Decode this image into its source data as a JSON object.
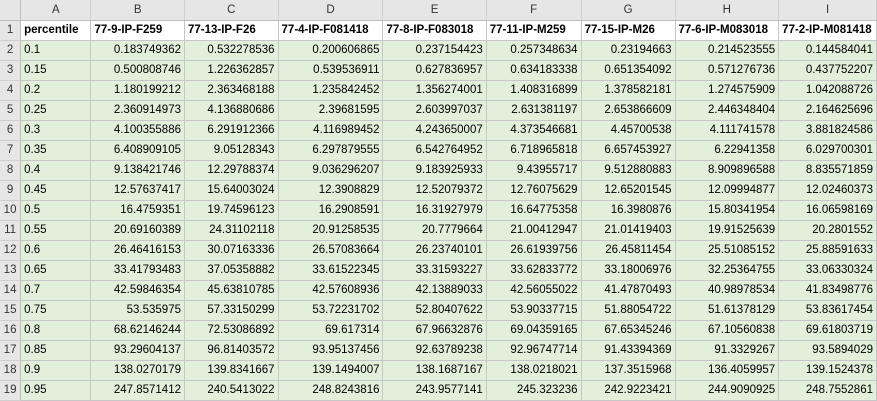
{
  "sheet": {
    "column_letters": [
      "A",
      "B",
      "C",
      "D",
      "E",
      "F",
      "G",
      "H",
      "I"
    ],
    "header_row": [
      "percentile",
      "77-9-IP-F259",
      "77-13-IP-F26",
      "77-4-IP-F081418",
      "77-8-IP-F083018",
      "77-11-IP-M259",
      "77-15-IP-M26",
      "77-6-IP-M083018",
      "77-2-IP-M081418"
    ],
    "rows": [
      [
        "0.1",
        "0.183749362",
        "0.532278536",
        "0.200606865",
        "0.237154423",
        "0.257348634",
        "0.23194663",
        "0.214523555",
        "0.144584041"
      ],
      [
        "0.15",
        "0.500808746",
        "1.226362857",
        "0.539536911",
        "0.627836957",
        "0.634183338",
        "0.651354092",
        "0.571276736",
        "0.437752207"
      ],
      [
        "0.2",
        "1.180199212",
        "2.363468188",
        "1.235842452",
        "1.356274001",
        "1.408316899",
        "1.378582181",
        "1.274575909",
        "1.042088726"
      ],
      [
        "0.25",
        "2.360914973",
        "4.136880686",
        "2.39681595",
        "2.603997037",
        "2.631381197",
        "2.653866609",
        "2.446348404",
        "2.164625696"
      ],
      [
        "0.3",
        "4.100355886",
        "6.291912366",
        "4.116989452",
        "4.243650007",
        "4.373546681",
        "4.45700538",
        "4.111741578",
        "3.881824586"
      ],
      [
        "0.35",
        "6.408909105",
        "9.05128343",
        "6.297879555",
        "6.542764952",
        "6.718965818",
        "6.657453927",
        "6.22941358",
        "6.029700301"
      ],
      [
        "0.4",
        "9.138421746",
        "12.29788374",
        "9.036296207",
        "9.183925933",
        "9.43955717",
        "9.512880883",
        "8.909896588",
        "8.835571859"
      ],
      [
        "0.45",
        "12.57637417",
        "15.64003024",
        "12.3908829",
        "12.52079372",
        "12.76075629",
        "12.65201545",
        "12.09994877",
        "12.02460373"
      ],
      [
        "0.5",
        "16.4759351",
        "19.74596123",
        "16.2908591",
        "16.31927979",
        "16.64775358",
        "16.3980876",
        "15.80341954",
        "16.06598169"
      ],
      [
        "0.55",
        "20.69160389",
        "24.31102118",
        "20.91258535",
        "20.7779664",
        "21.00412947",
        "21.01419403",
        "19.91525639",
        "20.2801552"
      ],
      [
        "0.6",
        "26.46416153",
        "30.07163336",
        "26.57083664",
        "26.23740101",
        "26.61939756",
        "26.45811454",
        "25.51085152",
        "25.88591633"
      ],
      [
        "0.65",
        "33.41793483",
        "37.05358882",
        "33.61522345",
        "33.31593227",
        "33.62833772",
        "33.18006976",
        "32.25364755",
        "33.06330324"
      ],
      [
        "0.7",
        "42.59846354",
        "45.63810785",
        "42.57608936",
        "42.13889033",
        "42.56055022",
        "41.47870493",
        "40.98978534",
        "41.83498776"
      ],
      [
        "0.75",
        "53.535975",
        "57.33150299",
        "53.72231702",
        "52.80407622",
        "53.90337715",
        "51.88054722",
        "51.61378129",
        "53.83617454"
      ],
      [
        "0.8",
        "68.62146244",
        "72.53086892",
        "69.617314",
        "67.96632876",
        "69.04359165",
        "67.65345246",
        "67.10560838",
        "69.61803719"
      ],
      [
        "0.85",
        "93.29604137",
        "96.81403572",
        "93.95137456",
        "92.63789238",
        "92.96747714",
        "91.43394369",
        "91.3329267",
        "93.5894029"
      ],
      [
        "0.9",
        "138.0270179",
        "139.8341667",
        "139.1494007",
        "138.1687167",
        "138.0218021",
        "137.3515968",
        "136.4059957",
        "139.1524378"
      ],
      [
        "0.95",
        "247.8571412",
        "240.5413022",
        "248.8243816",
        "243.9577141",
        "245.323236",
        "242.9223421",
        "244.9090925",
        "248.7552861"
      ]
    ]
  }
}
